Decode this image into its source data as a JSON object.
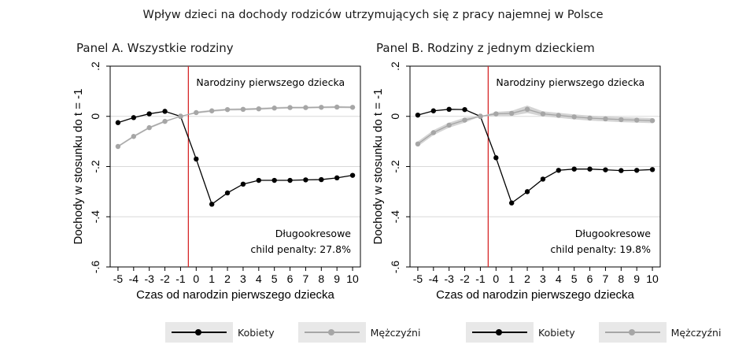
{
  "title": "Wpływ dzieci na dochody rodziców utrzymujących się z pracy najemnej w Polsce",
  "colors": {
    "women": "#000000",
    "men": "#a6a6a6",
    "band": "#d4d4d4",
    "event_line": "#d62728",
    "grid": "#d9d9d9"
  },
  "legend": {
    "women": "Kobiety",
    "men": "Mężczyźni"
  },
  "chart_data": [
    {
      "type": "line",
      "title": "Panel A. Wszystkie rodziny",
      "xlabel": "Czas od narodzin pierwszego dziecka",
      "ylabel": "Dochody w stosunku do t = -1",
      "x": [
        -5,
        -4,
        -3,
        -2,
        -1,
        0,
        1,
        2,
        3,
        4,
        5,
        6,
        7,
        8,
        9,
        10
      ],
      "xticks": [
        "-5",
        "-4",
        "-3",
        "-2",
        "-1",
        "0",
        "1",
        "2",
        "3",
        "4",
        "5",
        "6",
        "7",
        "8",
        "9",
        "10"
      ],
      "yticks": [
        ".2",
        "0",
        "-.2",
        "-.4",
        "-.6"
      ],
      "ylim": [
        -0.6,
        0.2
      ],
      "event_label": "Narodziny pierwszego dziecka",
      "annotation": [
        "Długookresowe",
        "child penalty: 27.8%"
      ],
      "grid": true,
      "series": [
        {
          "name": "Kobiety",
          "values": [
            -0.025,
            -0.005,
            0.01,
            0.02,
            0,
            -0.17,
            -0.35,
            -0.305,
            -0.27,
            -0.255,
            -0.255,
            -0.255,
            -0.253,
            -0.252,
            -0.245,
            -0.235
          ]
        },
        {
          "name": "Mężczyźni",
          "values": [
            -0.12,
            -0.08,
            -0.045,
            -0.02,
            0,
            0.015,
            0.022,
            0.027,
            0.028,
            0.03,
            0.033,
            0.035,
            0.035,
            0.036,
            0.037,
            0.036
          ],
          "band": [
            0.004,
            0.004,
            0.004,
            0.004,
            0,
            0.004,
            0.004,
            0.004,
            0.004,
            0.004,
            0.004,
            0.004,
            0.004,
            0.004,
            0.004,
            0.004
          ]
        }
      ]
    },
    {
      "type": "line",
      "title": "Panel B. Rodziny z jednym dzieckiem",
      "xlabel": "Czas od narodzin pierwszego dziecka",
      "ylabel": "Dochody w stosunku do t = -1",
      "x": [
        -5,
        -4,
        -3,
        -2,
        -1,
        0,
        1,
        2,
        3,
        4,
        5,
        6,
        7,
        8,
        9,
        10
      ],
      "xticks": [
        "-5",
        "-4",
        "-3",
        "-2",
        "-1",
        "0",
        "1",
        "2",
        "3",
        "4",
        "5",
        "6",
        "7",
        "8",
        "9",
        "10"
      ],
      "yticks": [
        ".2",
        "0",
        "-.2",
        "-.4",
        "-.6"
      ],
      "ylim": [
        -0.6,
        0.2
      ],
      "event_label": "Narodziny pierwszego dziecka",
      "annotation": [
        "Długookresowe",
        "child penalty: 19.8%"
      ],
      "grid": true,
      "series": [
        {
          "name": "Kobiety",
          "values": [
            0.005,
            0.022,
            0.028,
            0.027,
            0,
            -0.165,
            -0.345,
            -0.3,
            -0.25,
            -0.215,
            -0.21,
            -0.21,
            -0.213,
            -0.216,
            -0.215,
            -0.212
          ]
        },
        {
          "name": "Mężczyźni",
          "values": [
            -0.11,
            -0.065,
            -0.035,
            -0.015,
            0,
            0.01,
            0.012,
            0.028,
            0.01,
            0.004,
            -0.002,
            -0.007,
            -0.01,
            -0.013,
            -0.015,
            -0.017
          ],
          "band": [
            0.01,
            0.01,
            0.01,
            0.01,
            0,
            0.008,
            0.01,
            0.015,
            0.01,
            0.01,
            0.01,
            0.01,
            0.01,
            0.01,
            0.01,
            0.01
          ]
        }
      ]
    }
  ]
}
